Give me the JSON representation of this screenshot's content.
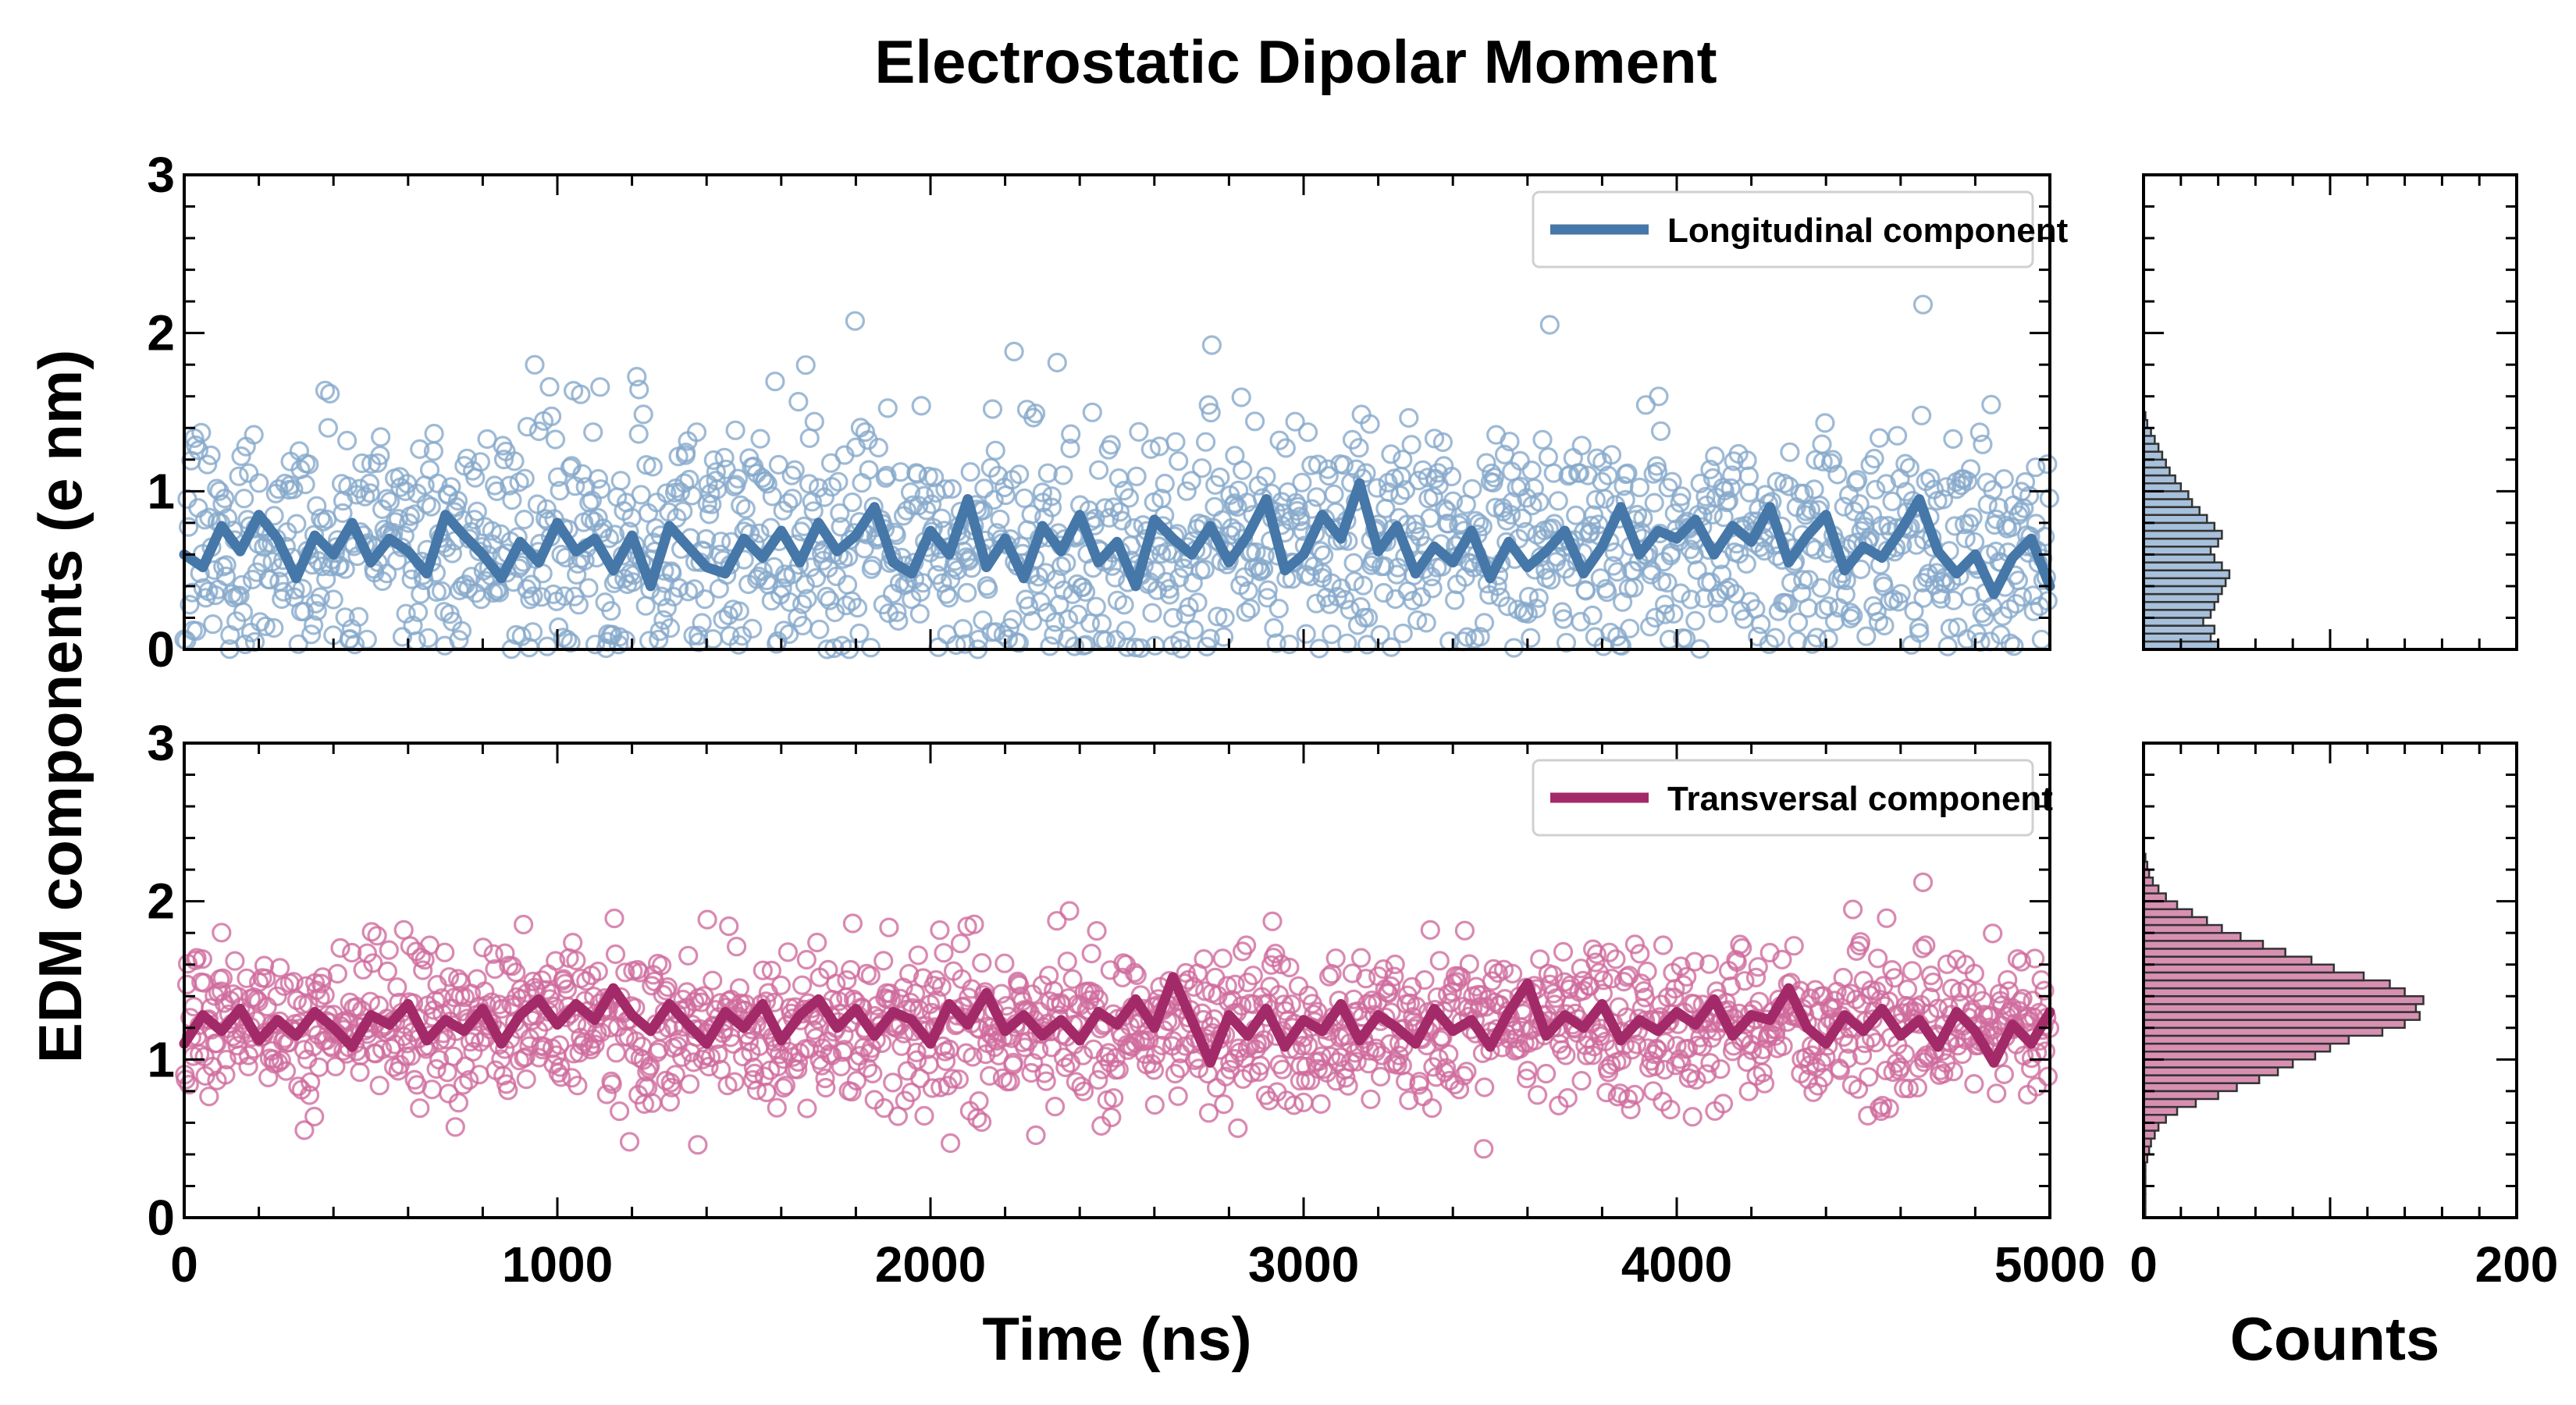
{
  "chart_data": {
    "type": "scatter",
    "title": "Electrostatic Dipolar Moment",
    "ylabel": "EDM components (e nm)",
    "xlabel_time": "Time (ns)",
    "xlabel_hist": "Counts",
    "time_ticks": [
      "0",
      "1000",
      "2000",
      "3000",
      "4000",
      "5000"
    ],
    "count_ticks": [
      "0",
      "200"
    ],
    "y_ticks": [
      "0",
      "1",
      "2",
      "3"
    ],
    "xlim": [
      0,
      5000
    ],
    "ylim": [
      0,
      3
    ],
    "hist_xlim": [
      0,
      200
    ],
    "grid": false,
    "legend_placement": "top-right",
    "panels": [
      {
        "id": "longitudinal",
        "legend": "Longitudinal component",
        "color": "#4577a8",
        "point_color": "#86a9cb",
        "hist_fill": "#a7c0db",
        "scatter_summary": {
          "n_points_approx": 1600,
          "mean": 0.68,
          "spread": 0.4,
          "max_outlier": 2.18
        },
        "smoothed_line": [
          [
            0,
            0.6
          ],
          [
            50,
            0.52
          ],
          [
            100,
            0.78
          ],
          [
            150,
            0.62
          ],
          [
            200,
            0.85
          ],
          [
            250,
            0.7
          ],
          [
            300,
            0.45
          ],
          [
            350,
            0.72
          ],
          [
            400,
            0.6
          ],
          [
            450,
            0.8
          ],
          [
            500,
            0.55
          ],
          [
            550,
            0.7
          ],
          [
            600,
            0.62
          ],
          [
            650,
            0.48
          ],
          [
            700,
            0.85
          ],
          [
            750,
            0.72
          ],
          [
            800,
            0.6
          ],
          [
            850,
            0.45
          ],
          [
            900,
            0.68
          ],
          [
            950,
            0.55
          ],
          [
            1000,
            0.8
          ],
          [
            1050,
            0.62
          ],
          [
            1100,
            0.7
          ],
          [
            1150,
            0.5
          ],
          [
            1200,
            0.72
          ],
          [
            1250,
            0.4
          ],
          [
            1300,
            0.78
          ],
          [
            1350,
            0.65
          ],
          [
            1400,
            0.52
          ],
          [
            1450,
            0.48
          ],
          [
            1500,
            0.7
          ],
          [
            1550,
            0.58
          ],
          [
            1600,
            0.75
          ],
          [
            1650,
            0.55
          ],
          [
            1700,
            0.8
          ],
          [
            1750,
            0.62
          ],
          [
            1800,
            0.72
          ],
          [
            1850,
            0.9
          ],
          [
            1900,
            0.55
          ],
          [
            1950,
            0.48
          ],
          [
            2000,
            0.75
          ],
          [
            2050,
            0.6
          ],
          [
            2100,
            0.95
          ],
          [
            2150,
            0.52
          ],
          [
            2200,
            0.7
          ],
          [
            2250,
            0.45
          ],
          [
            2300,
            0.78
          ],
          [
            2350,
            0.62
          ],
          [
            2400,
            0.85
          ],
          [
            2450,
            0.55
          ],
          [
            2500,
            0.68
          ],
          [
            2550,
            0.4
          ],
          [
            2600,
            0.82
          ],
          [
            2650,
            0.7
          ],
          [
            2700,
            0.6
          ],
          [
            2750,
            0.78
          ],
          [
            2800,
            0.55
          ],
          [
            2850,
            0.72
          ],
          [
            2900,
            0.95
          ],
          [
            2950,
            0.5
          ],
          [
            3000,
            0.6
          ],
          [
            3050,
            0.85
          ],
          [
            3100,
            0.7
          ],
          [
            3150,
            1.05
          ],
          [
            3200,
            0.62
          ],
          [
            3250,
            0.78
          ],
          [
            3300,
            0.48
          ],
          [
            3350,
            0.65
          ],
          [
            3400,
            0.55
          ],
          [
            3450,
            0.75
          ],
          [
            3500,
            0.45
          ],
          [
            3550,
            0.68
          ],
          [
            3600,
            0.52
          ],
          [
            3650,
            0.62
          ],
          [
            3700,
            0.75
          ],
          [
            3750,
            0.48
          ],
          [
            3800,
            0.65
          ],
          [
            3850,
            0.9
          ],
          [
            3900,
            0.6
          ],
          [
            3950,
            0.75
          ],
          [
            4000,
            0.7
          ],
          [
            4050,
            0.82
          ],
          [
            4100,
            0.6
          ],
          [
            4150,
            0.78
          ],
          [
            4200,
            0.68
          ],
          [
            4250,
            0.9
          ],
          [
            4300,
            0.55
          ],
          [
            4350,
            0.72
          ],
          [
            4400,
            0.85
          ],
          [
            4450,
            0.5
          ],
          [
            4500,
            0.65
          ],
          [
            4550,
            0.58
          ],
          [
            4600,
            0.75
          ],
          [
            4650,
            0.95
          ],
          [
            4700,
            0.62
          ],
          [
            4750,
            0.48
          ],
          [
            4800,
            0.6
          ],
          [
            4850,
            0.35
          ],
          [
            4900,
            0.58
          ],
          [
            4950,
            0.7
          ],
          [
            5000,
            0.4
          ]
        ],
        "histogram": {
          "bin_width": 0.05,
          "bin_start": 0.0,
          "counts": [
            40,
            36,
            38,
            32,
            36,
            38,
            40,
            42,
            44,
            46,
            42,
            38,
            36,
            40,
            42,
            38,
            34,
            30,
            26,
            24,
            20,
            17,
            14,
            12,
            10,
            8,
            6,
            4,
            2,
            1
          ]
        }
      },
      {
        "id": "transversal",
        "legend": "Transversal component",
        "color": "#a32a68",
        "point_color": "#cf6b9d",
        "hist_fill": "#d890b2",
        "scatter_summary": {
          "n_points_approx": 1600,
          "mean": 1.22,
          "spread": 0.25,
          "max_outlier": 2.12
        },
        "smoothed_line": [
          [
            0,
            1.1
          ],
          [
            50,
            1.28
          ],
          [
            100,
            1.18
          ],
          [
            150,
            1.32
          ],
          [
            200,
            1.12
          ],
          [
            250,
            1.25
          ],
          [
            300,
            1.15
          ],
          [
            350,
            1.3
          ],
          [
            400,
            1.2
          ],
          [
            450,
            1.08
          ],
          [
            500,
            1.28
          ],
          [
            550,
            1.22
          ],
          [
            600,
            1.35
          ],
          [
            650,
            1.12
          ],
          [
            700,
            1.25
          ],
          [
            750,
            1.18
          ],
          [
            800,
            1.32
          ],
          [
            850,
            1.1
          ],
          [
            900,
            1.28
          ],
          [
            950,
            1.38
          ],
          [
            1000,
            1.22
          ],
          [
            1050,
            1.35
          ],
          [
            1100,
            1.25
          ],
          [
            1150,
            1.45
          ],
          [
            1200,
            1.28
          ],
          [
            1250,
            1.18
          ],
          [
            1300,
            1.35
          ],
          [
            1350,
            1.22
          ],
          [
            1400,
            1.1
          ],
          [
            1450,
            1.3
          ],
          [
            1500,
            1.2
          ],
          [
            1550,
            1.35
          ],
          [
            1600,
            1.12
          ],
          [
            1650,
            1.28
          ],
          [
            1700,
            1.38
          ],
          [
            1750,
            1.2
          ],
          [
            1800,
            1.32
          ],
          [
            1850,
            1.15
          ],
          [
            1900,
            1.3
          ],
          [
            1950,
            1.25
          ],
          [
            2000,
            1.1
          ],
          [
            2050,
            1.35
          ],
          [
            2100,
            1.22
          ],
          [
            2150,
            1.42
          ],
          [
            2200,
            1.18
          ],
          [
            2250,
            1.28
          ],
          [
            2300,
            1.15
          ],
          [
            2350,
            1.25
          ],
          [
            2400,
            1.12
          ],
          [
            2450,
            1.3
          ],
          [
            2500,
            1.22
          ],
          [
            2550,
            1.38
          ],
          [
            2600,
            1.2
          ],
          [
            2650,
            1.52
          ],
          [
            2700,
            1.25
          ],
          [
            2750,
            0.98
          ],
          [
            2800,
            1.28
          ],
          [
            2850,
            1.15
          ],
          [
            2900,
            1.32
          ],
          [
            2950,
            1.08
          ],
          [
            3000,
            1.25
          ],
          [
            3050,
            1.18
          ],
          [
            3100,
            1.35
          ],
          [
            3150,
            1.12
          ],
          [
            3200,
            1.28
          ],
          [
            3250,
            1.2
          ],
          [
            3300,
            1.1
          ],
          [
            3350,
            1.32
          ],
          [
            3400,
            1.18
          ],
          [
            3450,
            1.25
          ],
          [
            3500,
            1.08
          ],
          [
            3550,
            1.3
          ],
          [
            3600,
            1.48
          ],
          [
            3650,
            1.15
          ],
          [
            3700,
            1.28
          ],
          [
            3750,
            1.2
          ],
          [
            3800,
            1.35
          ],
          [
            3850,
            1.12
          ],
          [
            3900,
            1.25
          ],
          [
            3950,
            1.18
          ],
          [
            4000,
            1.3
          ],
          [
            4050,
            1.22
          ],
          [
            4100,
            1.38
          ],
          [
            4150,
            1.15
          ],
          [
            4200,
            1.28
          ],
          [
            4250,
            1.25
          ],
          [
            4300,
            1.45
          ],
          [
            4350,
            1.2
          ],
          [
            4400,
            1.1
          ],
          [
            4450,
            1.28
          ],
          [
            4500,
            1.18
          ],
          [
            4550,
            1.32
          ],
          [
            4600,
            1.15
          ],
          [
            4650,
            1.25
          ],
          [
            4700,
            1.08
          ],
          [
            4750,
            1.3
          ],
          [
            4800,
            1.18
          ],
          [
            4850,
            0.98
          ],
          [
            4900,
            1.22
          ],
          [
            4950,
            1.1
          ],
          [
            5000,
            1.3
          ]
        ],
        "histogram": {
          "bin_width": 0.05,
          "bin_start": 0.0,
          "counts": [
            1,
            1,
            1,
            1,
            1,
            1,
            1,
            2,
            3,
            4,
            6,
            8,
            12,
            18,
            28,
            40,
            50,
            62,
            72,
            80,
            92,
            100,
            110,
            128,
            140,
            148,
            146,
            150,
            140,
            132,
            118,
            102,
            90,
            76,
            64,
            52,
            42,
            34,
            26,
            18,
            12,
            8,
            5,
            3,
            2,
            1
          ]
        }
      }
    ]
  }
}
